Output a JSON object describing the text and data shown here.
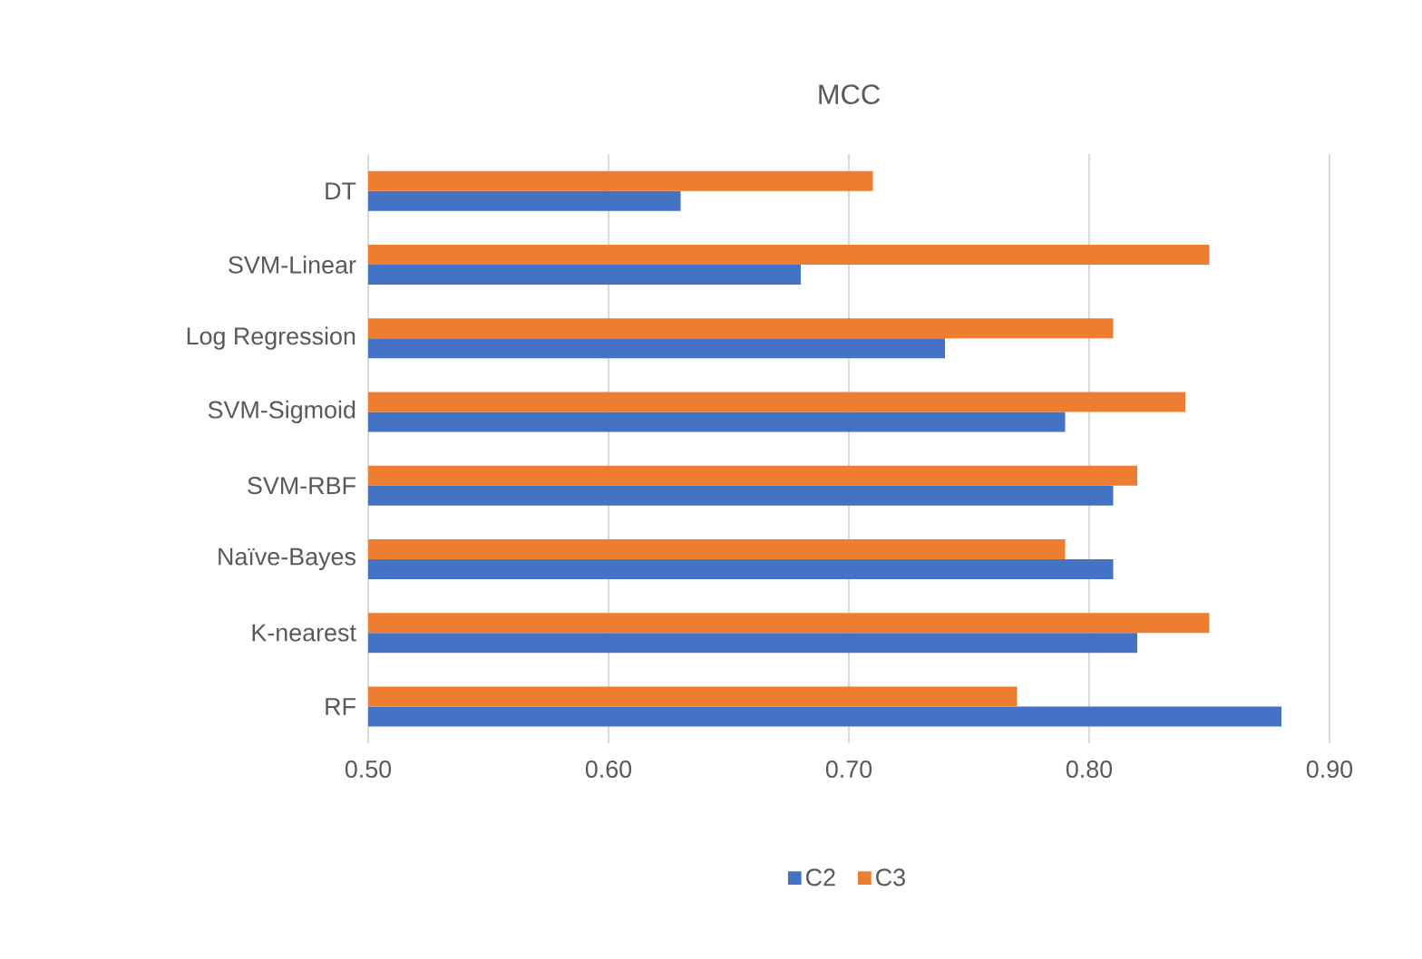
{
  "chart_data": {
    "type": "bar",
    "orientation": "horizontal",
    "title": "MCC",
    "categories": [
      "DT",
      "SVM-Linear",
      "Log Regression",
      "SVM-Sigmoid",
      "SVM-RBF",
      "Naïve-Bayes",
      "K-nearest",
      "RF"
    ],
    "series": [
      {
        "name": "C2",
        "color": "#4472c4",
        "values": [
          0.63,
          0.68,
          0.74,
          0.79,
          0.81,
          0.81,
          0.82,
          0.88
        ]
      },
      {
        "name": "C3",
        "color": "#ed7d31",
        "values": [
          0.71,
          0.85,
          0.81,
          0.84,
          0.82,
          0.79,
          0.85,
          0.77
        ]
      }
    ],
    "xlim": [
      0.5,
      0.9
    ],
    "xticks": [
      {
        "value": 0.5,
        "label": "0.50"
      },
      {
        "value": 0.6,
        "label": "0.60"
      },
      {
        "value": 0.7,
        "label": "0.70"
      },
      {
        "value": 0.8,
        "label": "0.80"
      },
      {
        "value": 0.9,
        "label": "0.90"
      }
    ],
    "grid": "x",
    "legend": "bottom"
  }
}
